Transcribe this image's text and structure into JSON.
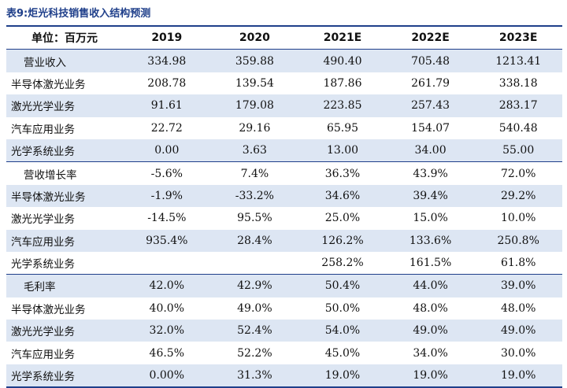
{
  "caption": "表9:炬光科技销售收入结构预测",
  "table": {
    "unit_label": "单位：百万元",
    "years": [
      "2019",
      "2020",
      "2021E",
      "2022E",
      "2023E"
    ],
    "sections": [
      {
        "rows": [
          {
            "label": "营业收入",
            "values": [
              "334.98",
              "359.88",
              "490.40",
              "705.48",
              "1213.41"
            ],
            "header": true
          },
          {
            "label": "半导体激光业务",
            "values": [
              "208.78",
              "139.54",
              "187.86",
              "261.79",
              "338.18"
            ]
          },
          {
            "label": "激光光学业务",
            "values": [
              "91.61",
              "179.08",
              "223.85",
              "257.43",
              "283.17"
            ]
          },
          {
            "label": "汽车应用业务",
            "values": [
              "22.72",
              "29.16",
              "65.95",
              "154.07",
              "540.48"
            ]
          },
          {
            "label": "光学系统业务",
            "values": [
              "0.00",
              "3.63",
              "13.00",
              "34.00",
              "55.00"
            ]
          }
        ]
      },
      {
        "rows": [
          {
            "label": "营收增长率",
            "values": [
              "-5.6%",
              "7.4%",
              "36.3%",
              "43.9%",
              "72.0%"
            ],
            "header": true
          },
          {
            "label": "半导体激光业务",
            "values": [
              "-1.9%",
              "-33.2%",
              "34.6%",
              "39.4%",
              "29.2%"
            ]
          },
          {
            "label": "激光光学业务",
            "values": [
              "-14.5%",
              "95.5%",
              "25.0%",
              "15.0%",
              "10.0%"
            ]
          },
          {
            "label": "汽车应用业务",
            "values": [
              "935.4%",
              "28.4%",
              "126.2%",
              "133.6%",
              "250.8%"
            ]
          },
          {
            "label": "光学系统业务",
            "values": [
              "",
              "",
              "258.2%",
              "161.5%",
              "61.8%"
            ]
          }
        ]
      },
      {
        "rows": [
          {
            "label": "毛利率",
            "values": [
              "42.0%",
              "42.9%",
              "50.4%",
              "44.0%",
              "39.0%"
            ],
            "header": true
          },
          {
            "label": "半导体激光业务",
            "values": [
              "40.0%",
              "49.0%",
              "50.0%",
              "48.0%",
              "48.0%"
            ]
          },
          {
            "label": "激光光学业务",
            "values": [
              "32.0%",
              "52.4%",
              "54.0%",
              "49.0%",
              "49.0%"
            ]
          },
          {
            "label": "汽车应用业务",
            "values": [
              "46.5%",
              "52.2%",
              "45.0%",
              "34.0%",
              "30.0%"
            ]
          },
          {
            "label": "光学系统业务",
            "values": [
              "0.00%",
              "31.3%",
              "19.0%",
              "19.0%",
              "19.0%"
            ]
          }
        ]
      }
    ]
  }
}
